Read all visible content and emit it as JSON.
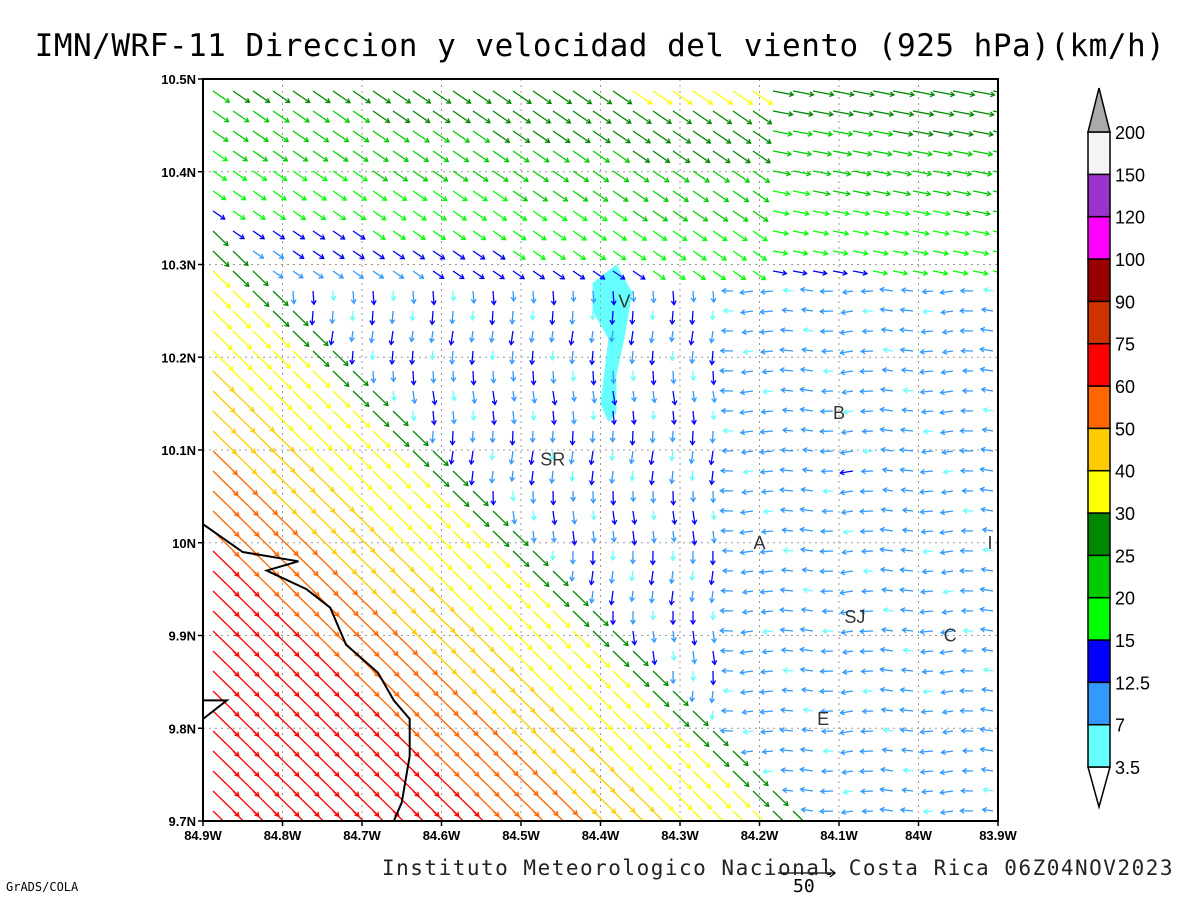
{
  "title": "IMN/WRF-11 Direccion y velocidad del viento (925 hPa)(km/h)",
  "credit": "Instituto Meteorologico Nacional Costa Rica 06Z04NOV2023",
  "software": "GrADS/COLA",
  "reference_vector": "50",
  "chart_data": {
    "type": "vector_field",
    "variable": "Direccion y velocidad del viento",
    "level": "925 hPa",
    "units": "km/h",
    "x": {
      "min": -84.9,
      "max": -83.9,
      "ticks": [
        "84.9W",
        "84.8W",
        "84.7W",
        "84.6W",
        "84.5W",
        "84.4W",
        "84.3W",
        "84.2W",
        "84.1W",
        "84W",
        "83.9W"
      ]
    },
    "y": {
      "min": 9.7,
      "max": 10.5,
      "ticks": [
        "9.7N",
        "9.8N",
        "9.9N",
        "10N",
        "10.1N",
        "10.2N",
        "10.3N",
        "10.4N",
        "10.5N"
      ]
    },
    "grid": true,
    "colorbar": {
      "levels": [
        "3.5",
        "7",
        "12.5",
        "15",
        "20",
        "25",
        "30",
        "40",
        "50",
        "60",
        "75",
        "90",
        "100",
        "120",
        "150",
        "200"
      ],
      "colors": [
        "#66ffff",
        "#3399ff",
        "#0000ff",
        "#00ff00",
        "#00cc00",
        "#008800",
        "#ffff00",
        "#ffcc00",
        "#ff6600",
        "#ff0000",
        "#cc3300",
        "#990000",
        "#ff00ff",
        "#9933cc",
        "#f4f4f4",
        "#aaaaaa"
      ]
    },
    "shaded_region": {
      "label": "3.5-7 km/h",
      "color": "#66ffff"
    },
    "cities": [
      {
        "name": "V",
        "lon": -84.37,
        "lat": 10.26
      },
      {
        "name": "B",
        "lon": -84.1,
        "lat": 10.14
      },
      {
        "name": "SR",
        "lon": -84.46,
        "lat": 10.09
      },
      {
        "name": "A",
        "lon": -84.2,
        "lat": 10.0
      },
      {
        "name": "I",
        "lon": -83.91,
        "lat": 10.0
      },
      {
        "name": "SJ",
        "lon": -84.08,
        "lat": 9.92
      },
      {
        "name": "C",
        "lon": -83.96,
        "lat": 9.9
      },
      {
        "name": "E",
        "lon": -84.12,
        "lat": 9.81
      }
    ],
    "coastline": [
      [
        -84.9,
        10.02
      ],
      [
        -84.85,
        9.99
      ],
      [
        -84.78,
        9.98
      ],
      [
        -84.82,
        9.97
      ],
      [
        -84.77,
        9.95
      ],
      [
        -84.74,
        9.93
      ],
      [
        -84.72,
        9.89
      ],
      [
        -84.68,
        9.86
      ],
      [
        -84.66,
        9.83
      ],
      [
        -84.64,
        9.81
      ],
      [
        -84.64,
        9.77
      ],
      [
        -84.65,
        9.72
      ],
      [
        -84.66,
        9.7
      ]
    ],
    "coastline_sw": [
      [
        -84.9,
        9.81
      ],
      [
        -84.87,
        9.83
      ],
      [
        -84.9,
        9.83
      ]
    ],
    "wind_field_note": "Strong NW flow (40-75 km/h) over Pacific SW corner; NW 20-30 km/h band across north; weak (<12.5 km/h) variable flow in central valley; easterly 7-12 km/h in east."
  }
}
